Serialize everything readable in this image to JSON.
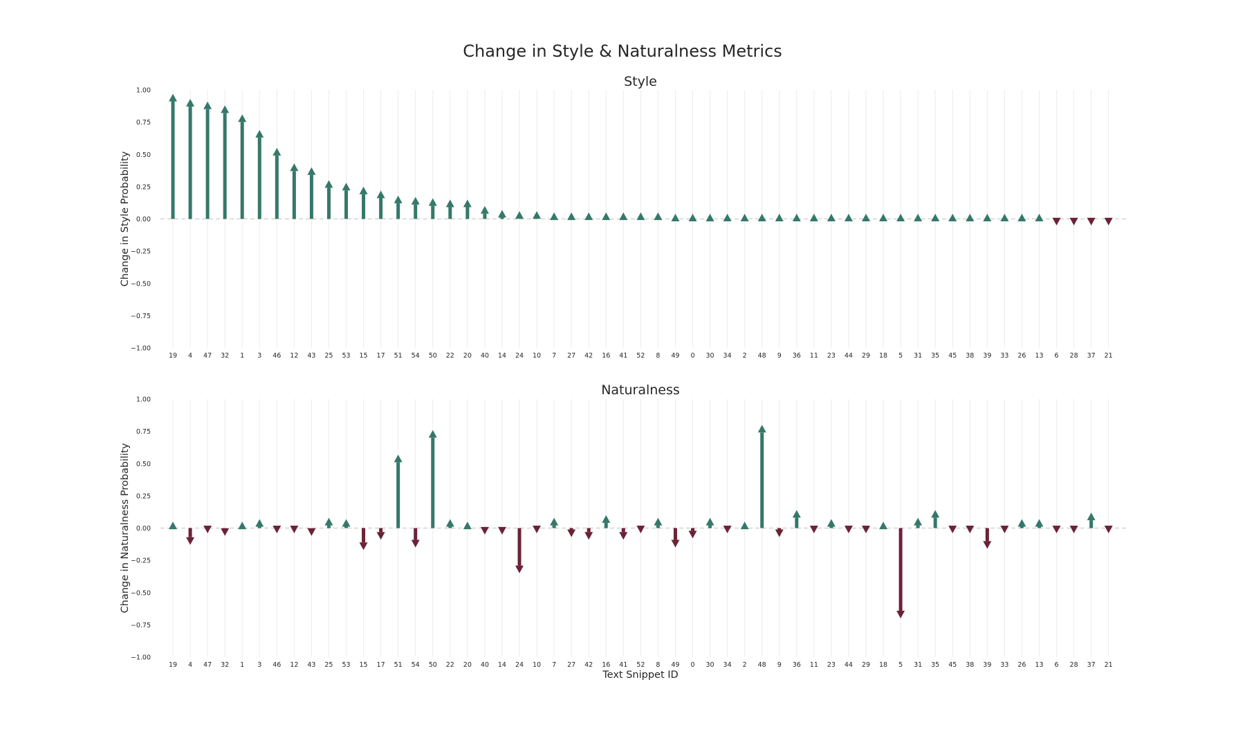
{
  "figure": {
    "title": "Change in Style & Naturalness Metrics",
    "xlabel": "Text Snippet ID"
  },
  "colors": {
    "positive": "#35786a",
    "negative": "#6b2237",
    "grid": "#ebebeb",
    "zero_line": "#cccccc"
  },
  "chart_data": [
    {
      "type": "bar",
      "marker": "arrow",
      "title": "Style",
      "ylabel": "Change in Style Probability",
      "ylim": [
        -1.0,
        1.0
      ],
      "yticks": [
        -1.0,
        -0.75,
        -0.5,
        -0.25,
        0.0,
        0.25,
        0.5,
        0.75,
        1.0
      ],
      "ytick_labels": [
        "−1.00",
        "−0.75",
        "−0.50",
        "−0.25",
        "0.00",
        "0.25",
        "0.50",
        "0.75",
        "1.00"
      ],
      "grid": "vertical",
      "categories": [
        "19",
        "4",
        "47",
        "32",
        "1",
        "3",
        "46",
        "12",
        "43",
        "25",
        "53",
        "15",
        "17",
        "51",
        "54",
        "50",
        "22",
        "20",
        "40",
        "14",
        "24",
        "10",
        "7",
        "27",
        "42",
        "16",
        "41",
        "52",
        "8",
        "49",
        "0",
        "30",
        "34",
        "2",
        "48",
        "9",
        "36",
        "11",
        "23",
        "44",
        "29",
        "18",
        "5",
        "31",
        "35",
        "45",
        "38",
        "39",
        "33",
        "26",
        "13",
        "6",
        "28",
        "37",
        "21"
      ],
      "values": [
        0.97,
        0.93,
        0.91,
        0.88,
        0.81,
        0.69,
        0.55,
        0.43,
        0.4,
        0.3,
        0.28,
        0.25,
        0.22,
        0.18,
        0.17,
        0.16,
        0.15,
        0.15,
        0.1,
        0.07,
        0.06,
        0.06,
        0.05,
        0.05,
        0.05,
        0.05,
        0.05,
        0.05,
        0.05,
        0.04,
        0.04,
        0.04,
        0.04,
        0.04,
        0.04,
        0.04,
        0.04,
        0.04,
        0.04,
        0.04,
        0.04,
        0.04,
        0.04,
        0.04,
        0.04,
        0.04,
        0.04,
        0.04,
        0.04,
        0.04,
        0.04,
        -0.05,
        -0.05,
        -0.05,
        -0.05
      ]
    },
    {
      "type": "bar",
      "marker": "arrow",
      "title": "Naturalness",
      "ylabel": "Change in Naturalness Probability",
      "ylim": [
        -1.0,
        1.0
      ],
      "yticks": [
        -1.0,
        -0.75,
        -0.5,
        -0.25,
        0.0,
        0.25,
        0.5,
        0.75,
        1.0
      ],
      "ytick_labels": [
        "−1.00",
        "−0.75",
        "−0.50",
        "−0.25",
        "0.00",
        "0.25",
        "0.50",
        "0.75",
        "1.00"
      ],
      "grid": "vertical",
      "categories": [
        "19",
        "4",
        "47",
        "32",
        "1",
        "3",
        "46",
        "12",
        "43",
        "25",
        "53",
        "15",
        "17",
        "51",
        "54",
        "50",
        "22",
        "20",
        "40",
        "14",
        "24",
        "10",
        "7",
        "27",
        "42",
        "16",
        "41",
        "52",
        "8",
        "49",
        "0",
        "30",
        "34",
        "2",
        "48",
        "9",
        "36",
        "11",
        "23",
        "44",
        "29",
        "18",
        "5",
        "31",
        "35",
        "45",
        "38",
        "39",
        "33",
        "26",
        "13",
        "6",
        "28",
        "37",
        "21"
      ],
      "values": [
        0.05,
        -0.13,
        -0.04,
        -0.06,
        0.05,
        0.07,
        -0.04,
        -0.04,
        -0.06,
        0.08,
        0.07,
        -0.17,
        -0.09,
        0.57,
        -0.15,
        0.76,
        0.07,
        0.05,
        -0.05,
        -0.05,
        -0.35,
        -0.04,
        0.08,
        -0.07,
        -0.09,
        0.1,
        -0.09,
        -0.04,
        0.08,
        -0.15,
        -0.08,
        0.08,
        -0.04,
        0.05,
        0.8,
        -0.07,
        0.14,
        -0.04,
        0.07,
        -0.04,
        -0.04,
        0.05,
        -0.7,
        0.08,
        0.14,
        -0.04,
        -0.04,
        -0.16,
        -0.04,
        0.07,
        0.07,
        -0.04,
        -0.04,
        0.12,
        -0.04
      ]
    }
  ]
}
